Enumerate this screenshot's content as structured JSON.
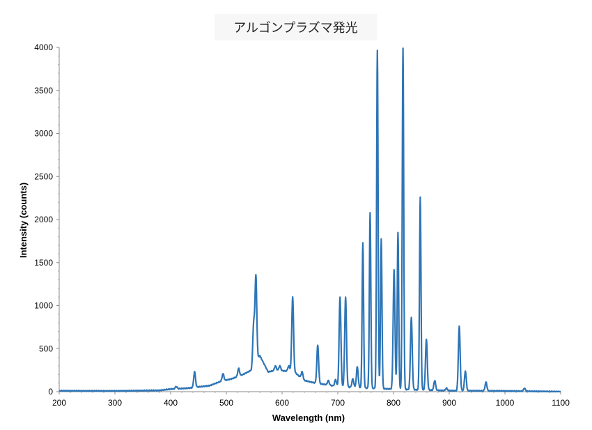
{
  "chart_data": {
    "type": "line",
    "title": "アルゴンプラズマ発光",
    "xlabel": "Wavelength (nm)",
    "ylabel": "Intensity (counts)",
    "xlim": [
      200,
      1100
    ],
    "ylim": [
      0,
      4000
    ],
    "x_ticks": [
      200,
      300,
      400,
      500,
      600,
      700,
      800,
      900,
      1000,
      1100
    ],
    "y_ticks": [
      0,
      500,
      1000,
      1500,
      2000,
      2500,
      3000,
      3500,
      4000
    ],
    "grid": false,
    "line_color": "#2e75b6",
    "baseline": [
      [
        200,
        10
      ],
      [
        300,
        8
      ],
      [
        380,
        15
      ],
      [
        400,
        30
      ],
      [
        430,
        40
      ],
      [
        470,
        70
      ],
      [
        490,
        120
      ],
      [
        510,
        150
      ],
      [
        530,
        200
      ],
      [
        545,
        250
      ],
      [
        560,
        420
      ],
      [
        575,
        230
      ],
      [
        590,
        250
      ],
      [
        605,
        240
      ],
      [
        620,
        240
      ],
      [
        640,
        130
      ],
      [
        660,
        100
      ],
      [
        700,
        60
      ],
      [
        760,
        40
      ],
      [
        800,
        30
      ],
      [
        850,
        20
      ],
      [
        900,
        12
      ],
      [
        1000,
        8
      ],
      [
        1100,
        0
      ]
    ],
    "peaks": [
      {
        "x": 410,
        "y": 60
      },
      {
        "x": 443,
        "y": 230
      },
      {
        "x": 494,
        "y": 210
      },
      {
        "x": 522,
        "y": 270
      },
      {
        "x": 549,
        "y": 780
      },
      {
        "x": 553,
        "y": 1340
      },
      {
        "x": 588,
        "y": 300
      },
      {
        "x": 596,
        "y": 300
      },
      {
        "x": 612,
        "y": 300
      },
      {
        "x": 619,
        "y": 1100
      },
      {
        "x": 636,
        "y": 230
      },
      {
        "x": 664,
        "y": 540
      },
      {
        "x": 683,
        "y": 130
      },
      {
        "x": 696,
        "y": 140
      },
      {
        "x": 704,
        "y": 1100
      },
      {
        "x": 714,
        "y": 1100
      },
      {
        "x": 727,
        "y": 150
      },
      {
        "x": 735,
        "y": 290
      },
      {
        "x": 745,
        "y": 1730
      },
      {
        "x": 758,
        "y": 2080
      },
      {
        "x": 771,
        "y": 3970
      },
      {
        "x": 778,
        "y": 1770
      },
      {
        "x": 801,
        "y": 1410
      },
      {
        "x": 808,
        "y": 1850
      },
      {
        "x": 817,
        "y": 3990
      },
      {
        "x": 832,
        "y": 860
      },
      {
        "x": 848,
        "y": 2260
      },
      {
        "x": 859,
        "y": 610
      },
      {
        "x": 874,
        "y": 130
      },
      {
        "x": 895,
        "y": 40
      },
      {
        "x": 918,
        "y": 760
      },
      {
        "x": 929,
        "y": 240
      },
      {
        "x": 966,
        "y": 110
      },
      {
        "x": 1035,
        "y": 40
      }
    ]
  }
}
